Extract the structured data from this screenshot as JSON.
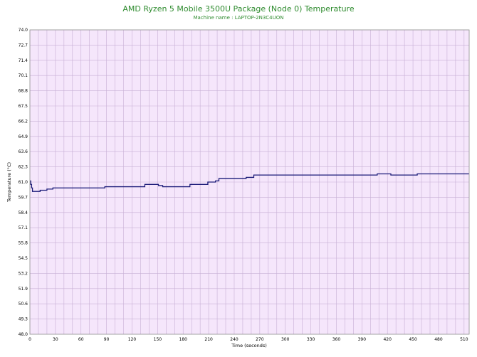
{
  "chart_data": {
    "type": "line",
    "title": "AMD Ryzen 5 Mobile 3500U Package (Node 0) Temperature",
    "subtitle": "Machine name : LAPTOP-2N3C4UON",
    "xlabel": "Time (seconds)",
    "ylabel": "Temperature (°C)",
    "xlim": [
      0,
      516
    ],
    "ylim": [
      48.0,
      74.0
    ],
    "x_ticks": [
      0,
      30,
      60,
      90,
      120,
      150,
      180,
      210,
      240,
      270,
      300,
      330,
      360,
      390,
      420,
      450,
      480,
      510
    ],
    "y_ticks": [
      "74.0",
      "72.7",
      "71.4",
      "70.1",
      "68.8",
      "67.5",
      "66.2",
      "64.9",
      "63.6",
      "62.3",
      "61.0",
      "59.7",
      "58.4",
      "57.1",
      "55.8",
      "54.5",
      "53.2",
      "51.9",
      "50.6",
      "49.3",
      "48.0"
    ],
    "grid": true,
    "colors": {
      "plot_background": "#f5e6fb",
      "grid": "#c7afd5",
      "line": "#1a1a78",
      "title": "#2e8b2e"
    },
    "series": [
      {
        "step": true,
        "x": [
          0,
          1,
          2,
          3,
          12,
          20,
          27,
          88,
          132,
          135,
          141,
          151,
          156,
          188,
          209,
          218,
          222,
          230,
          254,
          263,
          408,
          424,
          455,
          516
        ],
        "y": [
          61.1,
          60.8,
          60.5,
          60.2,
          60.3,
          60.4,
          60.5,
          60.6,
          60.6,
          60.8,
          60.8,
          60.7,
          60.6,
          60.8,
          61.0,
          61.1,
          61.3,
          61.3,
          61.4,
          61.6,
          61.7,
          61.6,
          61.7,
          61.7
        ]
      }
    ]
  }
}
